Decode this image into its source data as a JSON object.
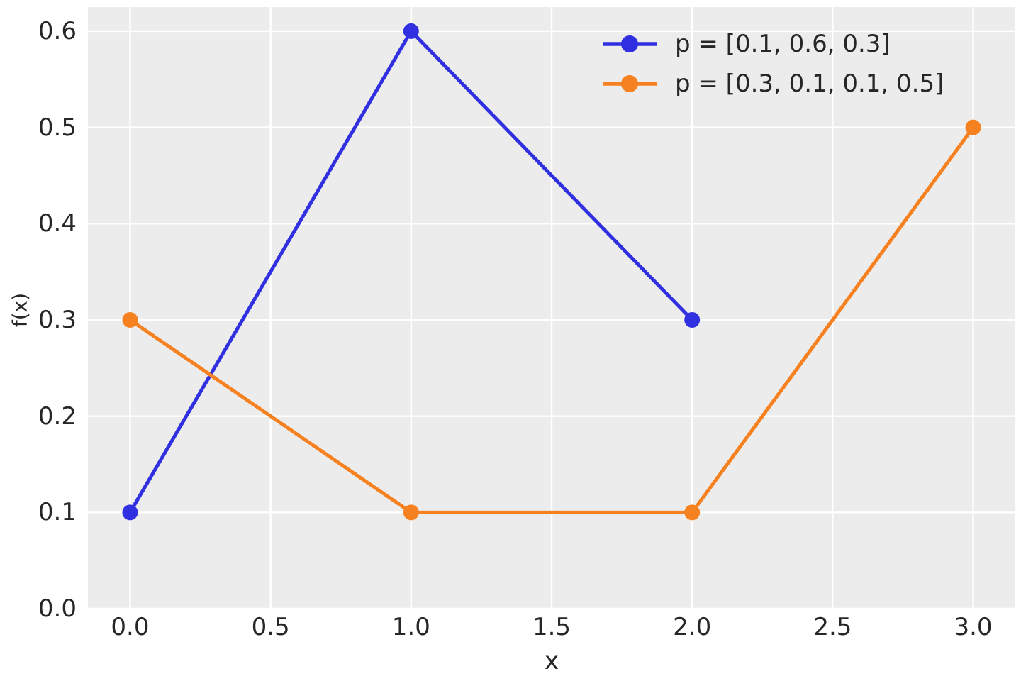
{
  "figure": {
    "background": "#ffffff",
    "plot_background": "#ececec",
    "grid_color": "#ffffff",
    "text_color": "#262626"
  },
  "chart_data": {
    "type": "line",
    "title": "",
    "xlabel": "x",
    "ylabel": "f(x)",
    "grid": true,
    "legend_position": "upper right",
    "legend_frame": false,
    "xlim": [
      -0.15,
      3.15
    ],
    "ylim": [
      0,
      0.625
    ],
    "x_tick_labels": [
      "0.0",
      "0.5",
      "1.0",
      "1.5",
      "2.0",
      "2.5",
      "3.0"
    ],
    "y_tick_labels": [
      "0.0",
      "0.1",
      "0.2",
      "0.3",
      "0.4",
      "0.5",
      "0.6"
    ],
    "series": [
      {
        "name": "p = [0.1, 0.6, 0.3]",
        "color": "#3030e1",
        "marker": "circle",
        "x": [
          0,
          1,
          2
        ],
        "y": [
          0.1,
          0.6,
          0.3
        ]
      },
      {
        "name": "p = [0.3, 0.1, 0.1, 0.5]",
        "color": "#f68120",
        "marker": "circle",
        "x": [
          0,
          1,
          2,
          3
        ],
        "y": [
          0.3,
          0.1,
          0.1,
          0.5
        ]
      }
    ]
  }
}
